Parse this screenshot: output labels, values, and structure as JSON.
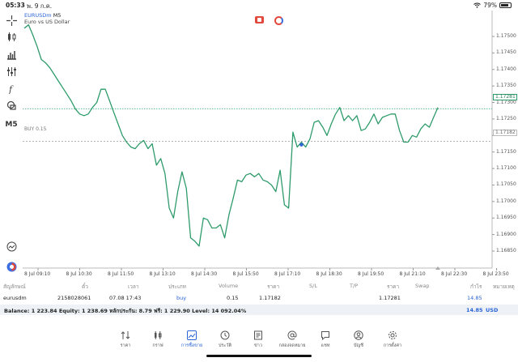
{
  "status": {
    "time": "05:33",
    "date": "พ. 9 ก.ค.",
    "battery": "79%",
    "battery_level": 0.79
  },
  "chart": {
    "symbol": "EURUSDm",
    "timeframe_label": "M5",
    "subtitle": "Euro vs US Dollar",
    "buy_line_label": "BUY 0.15",
    "current_price_tag": "1.17281",
    "buy_price_tag": "1.17182",
    "y_ticks": [
      "1.17500",
      "1.17450",
      "1.17400",
      "1.17350",
      "1.17300",
      "1.17250",
      "1.17200",
      "1.17150",
      "1.17100",
      "1.17050",
      "1.17000",
      "1.16950",
      "1.16900",
      "1.16850"
    ],
    "x_ticks": [
      "8 Jul 09:10",
      "8 Jul 10:30",
      "8 Jul 11:50",
      "8 Jul 13:10",
      "8 Jul 14:30",
      "8 Jul 15:50",
      "8 Jul 17:10",
      "8 Jul 18:30",
      "8 Jul 19:50",
      "8 Jul 21:10",
      "8 Jul 22:30",
      "8 Jul 23:50"
    ],
    "line_color": "#2e9b6b",
    "accent_color": "#2a64d6"
  },
  "chart_data": {
    "type": "line",
    "title": "EURUSDm",
    "ylim": [
      1.1682,
      1.1755
    ],
    "series": [
      {
        "values": [
          1.17525,
          1.17535,
          1.17505,
          1.1747,
          1.1743,
          1.1742,
          1.17405,
          1.17385,
          1.17365,
          1.17345,
          1.17325,
          1.17305,
          1.1728,
          1.17265,
          1.1726,
          1.17265,
          1.17285,
          1.173,
          1.1734,
          1.1734,
          1.17305,
          1.1727,
          1.17235,
          1.172,
          1.1718,
          1.17165,
          1.1716,
          1.17175,
          1.17185,
          1.1716,
          1.17175,
          1.1711,
          1.1713,
          1.17085,
          1.1698,
          1.1695,
          1.1703,
          1.1709,
          1.1704,
          1.1689,
          1.1688,
          1.16865,
          1.1695,
          1.16945,
          1.1692,
          1.1692,
          1.1693,
          1.1689,
          1.1696,
          1.1701,
          1.17065,
          1.1706,
          1.1708,
          1.17085,
          1.17075,
          1.17085,
          1.17065,
          1.1706,
          1.1705,
          1.1703,
          1.17095,
          1.1699,
          1.1698,
          1.1721,
          1.17165,
          1.1718,
          1.17165,
          1.1719,
          1.1724,
          1.17245,
          1.17225,
          1.172,
          1.17235,
          1.17265,
          1.17285,
          1.17245,
          1.1726,
          1.17245,
          1.1726,
          1.17215,
          1.1722,
          1.1724,
          1.17265,
          1.17235,
          1.17255,
          1.1726,
          1.17265,
          1.17265,
          1.17215,
          1.1718,
          1.1718,
          1.172,
          1.17195,
          1.1722,
          1.17235,
          1.17225,
          1.17255,
          1.17285
        ]
      }
    ],
    "markers": [
      {
        "label": "buy",
        "value": 1.17182
      }
    ]
  },
  "toolbar": [
    "crosshair-icon",
    "candles-icon",
    "bars-icon",
    "indicators-icon",
    "function-icon",
    "objects-icon"
  ],
  "toolbar_timeframe": "M5",
  "table": {
    "headers": [
      "สัญลักษณ์",
      "ตั๋ว",
      "เวลา",
      "ประเภท",
      "Volume",
      "ราคา",
      "S/L",
      "T/P",
      "ราคา",
      "Swap",
      "กำไร",
      "หมายเหตุ"
    ],
    "row": {
      "symbol": "eurusdm",
      "ticket": "2158028061",
      "time": "07.08 17:43",
      "type": "buy",
      "volume": "0.15",
      "open_price": "1.17182",
      "current_price": "1.17281",
      "profit": "14.85"
    }
  },
  "balance": {
    "text": "Balance: 1 223.84 Equity: 1 238.69 หลักประกัน: 8.79 ฟรี: 1 229.90 Level: 14 092.04%",
    "profit": "14.85",
    "currency": "USD"
  },
  "nav": [
    {
      "label": "ราคา",
      "icon": "quotes-icon"
    },
    {
      "label": "กราฟ",
      "icon": "chart-icon"
    },
    {
      "label": "การซื้อขาย",
      "icon": "trade-icon",
      "active": true
    },
    {
      "label": "ประวัติ",
      "icon": "history-icon"
    },
    {
      "label": "ข่าว",
      "icon": "news-icon"
    },
    {
      "label": "กล่องจดหมาย",
      "icon": "mailbox-icon"
    },
    {
      "label": "แชท",
      "icon": "chat-icon"
    },
    {
      "label": "บัญชี",
      "icon": "accounts-icon"
    },
    {
      "label": "การตั้งค่า",
      "icon": "settings-icon"
    }
  ]
}
